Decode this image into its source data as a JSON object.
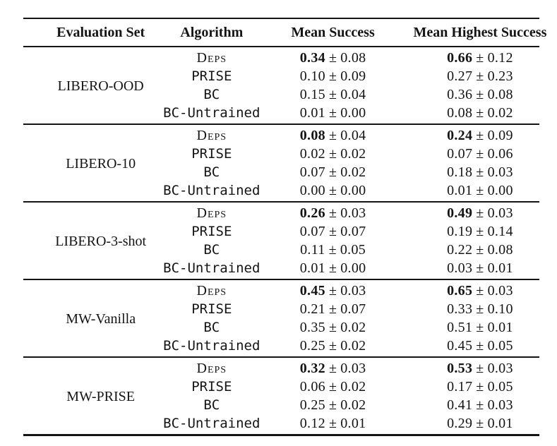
{
  "colors": {
    "background": "#ffffff",
    "text": "#141414",
    "rule": "#141414"
  },
  "table": {
    "pm_symbol": "±",
    "headers": [
      "Evaluation Set",
      "Algorithm",
      "Mean Success",
      "Mean Highest Success"
    ],
    "groups": [
      {
        "evaluation_set": "LIBERO-OOD",
        "rows": [
          {
            "algorithm": "Deps",
            "algo_style": "smallcaps",
            "bold": true,
            "mean": "0.34",
            "mean_err": "0.08",
            "highest": "0.66",
            "highest_err": "0.12"
          },
          {
            "algorithm": "PRISE",
            "algo_style": "mono",
            "bold": false,
            "mean": "0.10",
            "mean_err": "0.09",
            "highest": "0.27",
            "highest_err": "0.23"
          },
          {
            "algorithm": "BC",
            "algo_style": "mono",
            "bold": false,
            "mean": "0.15",
            "mean_err": "0.04",
            "highest": "0.36",
            "highest_err": "0.08"
          },
          {
            "algorithm": "BC-Untrained",
            "algo_style": "mono",
            "bold": false,
            "mean": "0.01",
            "mean_err": "0.00",
            "highest": "0.08",
            "highest_err": "0.02"
          }
        ]
      },
      {
        "evaluation_set": "LIBERO-10",
        "rows": [
          {
            "algorithm": "Deps",
            "algo_style": "smallcaps",
            "bold": true,
            "mean": "0.08",
            "mean_err": "0.04",
            "highest": "0.24",
            "highest_err": "0.09"
          },
          {
            "algorithm": "PRISE",
            "algo_style": "mono",
            "bold": false,
            "mean": "0.02",
            "mean_err": "0.02",
            "highest": "0.07",
            "highest_err": "0.06"
          },
          {
            "algorithm": "BC",
            "algo_style": "mono",
            "bold": false,
            "mean": "0.07",
            "mean_err": "0.02",
            "highest": "0.18",
            "highest_err": "0.03"
          },
          {
            "algorithm": "BC-Untrained",
            "algo_style": "mono",
            "bold": false,
            "mean": "0.00",
            "mean_err": "0.00",
            "highest": "0.01",
            "highest_err": "0.00"
          }
        ]
      },
      {
        "evaluation_set": "LIBERO-3-shot",
        "rows": [
          {
            "algorithm": "Deps",
            "algo_style": "smallcaps",
            "bold": true,
            "mean": "0.26",
            "mean_err": "0.03",
            "highest": "0.49",
            "highest_err": "0.03"
          },
          {
            "algorithm": "PRISE",
            "algo_style": "mono",
            "bold": false,
            "mean": "0.07",
            "mean_err": "0.07",
            "highest": "0.19",
            "highest_err": "0.14"
          },
          {
            "algorithm": "BC",
            "algo_style": "mono",
            "bold": false,
            "mean": "0.11",
            "mean_err": "0.05",
            "highest": "0.22",
            "highest_err": "0.08"
          },
          {
            "algorithm": "BC-Untrained",
            "algo_style": "mono",
            "bold": false,
            "mean": "0.01",
            "mean_err": "0.00",
            "highest": "0.03",
            "highest_err": "0.01"
          }
        ]
      },
      {
        "evaluation_set": "MW-Vanilla",
        "rows": [
          {
            "algorithm": "Deps",
            "algo_style": "smallcaps",
            "bold": true,
            "mean": "0.45",
            "mean_err": "0.03",
            "highest": "0.65",
            "highest_err": "0.03"
          },
          {
            "algorithm": "PRISE",
            "algo_style": "mono",
            "bold": false,
            "mean": "0.21",
            "mean_err": "0.07",
            "highest": "0.33",
            "highest_err": "0.10"
          },
          {
            "algorithm": "BC",
            "algo_style": "mono",
            "bold": false,
            "mean": "0.35",
            "mean_err": "0.02",
            "highest": "0.51",
            "highest_err": "0.01"
          },
          {
            "algorithm": "BC-Untrained",
            "algo_style": "mono",
            "bold": false,
            "mean": "0.25",
            "mean_err": "0.02",
            "highest": "0.45",
            "highest_err": "0.05"
          }
        ]
      },
      {
        "evaluation_set": "MW-PRISE",
        "rows": [
          {
            "algorithm": "Deps",
            "algo_style": "smallcaps",
            "bold": true,
            "mean": "0.32",
            "mean_err": "0.03",
            "highest": "0.53",
            "highest_err": "0.03"
          },
          {
            "algorithm": "PRISE",
            "algo_style": "mono",
            "bold": false,
            "mean": "0.06",
            "mean_err": "0.02",
            "highest": "0.17",
            "highest_err": "0.05"
          },
          {
            "algorithm": "BC",
            "algo_style": "mono",
            "bold": false,
            "mean": "0.25",
            "mean_err": "0.02",
            "highest": "0.41",
            "highest_err": "0.03"
          },
          {
            "algorithm": "BC-Untrained",
            "algo_style": "mono",
            "bold": false,
            "mean": "0.12",
            "mean_err": "0.01",
            "highest": "0.29",
            "highest_err": "0.01"
          }
        ]
      }
    ]
  }
}
